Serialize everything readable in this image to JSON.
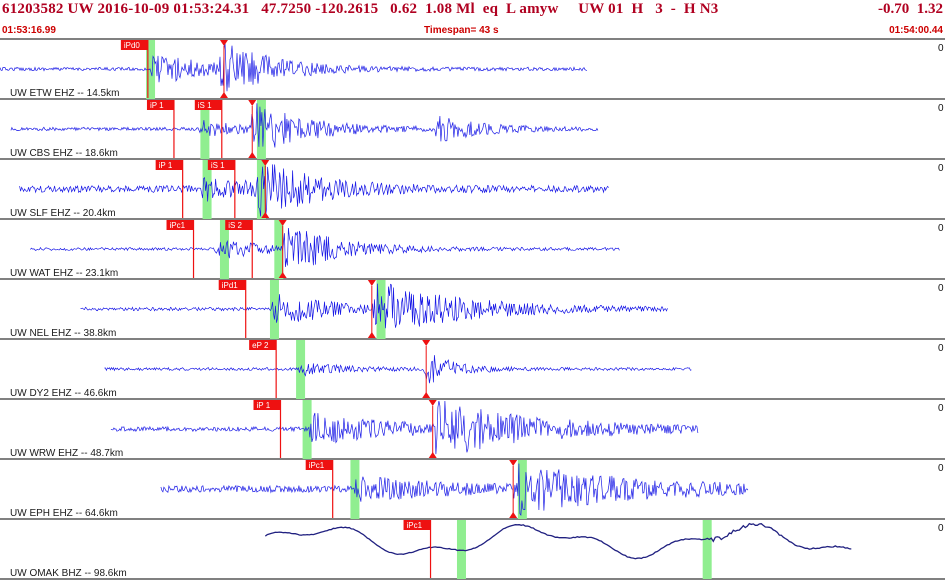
{
  "header": {
    "title": "61203582 UW 2016-10-09 01:53:24.31   47.7250 -120.2615   0.62  1.08 Ml  eq  L amyw     UW 01  H   3  -  H N3",
    "right_value": "-0.70  1.32",
    "start_time": "01:53:16.99",
    "timespan": "Timespan=  43 s",
    "end_time": "01:54:00.44"
  },
  "colors": {
    "waveform": "#1a1ae6",
    "waveform_longperiod": "#202080",
    "pick_box": "#ee1111",
    "window_band": "#90ee90",
    "header_text": "#b00020",
    "separator": "#000000"
  },
  "traces": [
    {
      "label": "UW ETW EHZ -- 14.5km",
      "gain": "0",
      "picks": [
        {
          "label": "iPd0",
          "time": 6.8
        },
        {
          "label": "",
          "time": 10.3,
          "marker": true
        }
      ],
      "bands": [
        6.9
      ],
      "signal": {
        "start": 0.0,
        "end": 27.0,
        "noise": 0.06,
        "events": [
          {
            "t": 6.9,
            "amp": 0.55,
            "decay": 3.0
          },
          {
            "t": 10.1,
            "amp": 0.9,
            "decay": 2.2
          }
        ]
      }
    },
    {
      "label": "UW CBS EHZ -- 18.6km",
      "gain": "0",
      "picks": [
        {
          "label": "iP 1",
          "time": 8.0
        },
        {
          "label": "iS 1",
          "time": 10.2
        },
        {
          "label": "",
          "time": 11.6,
          "marker": true
        }
      ],
      "bands": [
        9.4,
        12.0
      ],
      "signal": {
        "start": 0.5,
        "end": 27.5,
        "noise": 0.06,
        "events": [
          {
            "t": 9.1,
            "amp": 0.3,
            "decay": 2.0
          },
          {
            "t": 11.5,
            "amp": 0.9,
            "decay": 2.5
          },
          {
            "t": 20.0,
            "amp": 0.45,
            "decay": 2.0
          }
        ]
      }
    },
    {
      "label": "UW SLF EHZ -- 20.4km",
      "gain": "0",
      "picks": [
        {
          "label": "iP 1",
          "time": 8.4
        },
        {
          "label": "iS 1",
          "time": 10.8
        },
        {
          "label": "",
          "time": 12.2,
          "marker": true
        }
      ],
      "bands": [
        9.5,
        12.0
      ],
      "signal": {
        "start": 0.9,
        "end": 28.0,
        "noise": 0.12,
        "events": [
          {
            "t": 9.2,
            "amp": 0.5,
            "decay": 2.2
          },
          {
            "t": 11.8,
            "amp": 0.95,
            "decay": 2.5
          }
        ]
      }
    },
    {
      "label": "UW WAT EHZ -- 23.1km",
      "gain": "0",
      "picks": [
        {
          "label": "iPc1",
          "time": 8.9
        },
        {
          "label": "iS 2",
          "time": 11.6
        },
        {
          "label": "",
          "time": 13.0,
          "marker": true
        }
      ],
      "bands": [
        10.3,
        12.8
      ],
      "signal": {
        "start": 1.4,
        "end": 28.5,
        "noise": 0.05,
        "events": [
          {
            "t": 9.9,
            "amp": 0.4,
            "decay": 2.0
          },
          {
            "t": 12.9,
            "amp": 0.9,
            "decay": 2.5
          }
        ]
      }
    },
    {
      "label": "UW NEL EHZ -- 38.8km",
      "gain": "0",
      "picks": [
        {
          "label": "iPd1",
          "time": 11.3
        },
        {
          "label": "",
          "time": 17.1,
          "marker": true
        }
      ],
      "bands": [
        12.6,
        17.5
      ],
      "signal": {
        "start": 3.7,
        "end": 30.7,
        "noise": 0.06,
        "events": [
          {
            "t": 12.5,
            "amp": 0.7,
            "decay": 2.5
          },
          {
            "t": 17.1,
            "amp": 0.95,
            "decay": 4.0
          }
        ]
      }
    },
    {
      "label": "UW DY2 EHZ -- 46.6km",
      "gain": "0",
      "picks": [
        {
          "label": "eP 2",
          "time": 12.7
        },
        {
          "label": "",
          "time": 19.6,
          "marker": true
        }
      ],
      "bands": [
        13.8
      ],
      "signal": {
        "start": 4.8,
        "end": 31.8,
        "noise": 0.05,
        "events": [
          {
            "t": 13.7,
            "amp": 0.25,
            "decay": 2.0
          },
          {
            "t": 19.5,
            "amp": 0.7,
            "decay": 1.2
          }
        ]
      }
    },
    {
      "label": "UW WRW EHZ -- 48.7km",
      "gain": "0",
      "picks": [
        {
          "label": "iP 1",
          "time": 12.9
        },
        {
          "label": "",
          "time": 19.9,
          "marker": true
        }
      ],
      "bands": [
        14.1
      ],
      "signal": {
        "start": 5.1,
        "end": 32.1,
        "noise": 0.08,
        "events": [
          {
            "t": 14.2,
            "amp": 0.55,
            "decay": 4.0
          },
          {
            "t": 19.9,
            "amp": 0.95,
            "decay": 4.5
          }
        ]
      }
    },
    {
      "label": "UW EPH EHZ -- 64.6km",
      "gain": "0",
      "picks": [
        {
          "label": "iPc1",
          "time": 15.3
        },
        {
          "label": "",
          "time": 23.6,
          "marker": true
        }
      ],
      "bands": [
        16.3,
        24.0
      ],
      "signal": {
        "start": 7.4,
        "end": 34.4,
        "noise": 0.12,
        "events": [
          {
            "t": 16.2,
            "amp": 0.45,
            "decay": 4.0
          },
          {
            "t": 23.6,
            "amp": 0.85,
            "decay": 5.0
          }
        ]
      }
    },
    {
      "label": "UW OMAK BHZ -- 98.6km",
      "gain": "0",
      "picks": [
        {
          "label": "iPc1",
          "time": 19.8
        }
      ],
      "bands": [
        21.2,
        32.5
      ],
      "signal": {
        "start": 12.2,
        "end": 39.2,
        "noise": 0.03,
        "longperiod": true,
        "events": [
          {
            "t": 32.5,
            "amp": 0.18,
            "decay": 2.0
          }
        ]
      }
    }
  ],
  "timeline": {
    "span_seconds": 43
  }
}
